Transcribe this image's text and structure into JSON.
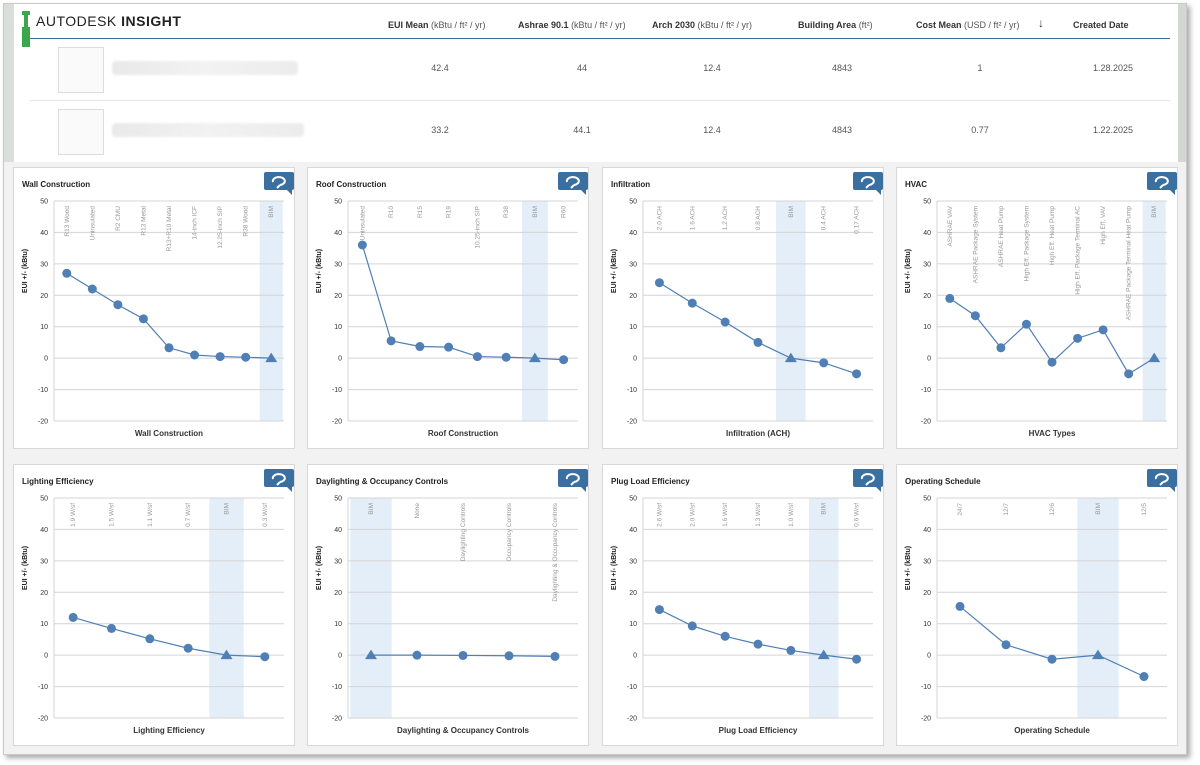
{
  "app": {
    "brand_prefix": "AUTODESK",
    "brand_name": "INSIGHT"
  },
  "table": {
    "columns": [
      {
        "label": "EUI Mean",
        "unit": "(kBtu / ft² / yr)"
      },
      {
        "label": "Ashrae 90.1",
        "unit": "(kBtu / ft² / yr)"
      },
      {
        "label": "Arch 2030",
        "unit": "(kBtu / ft² / yr)"
      },
      {
        "label": "Building Area",
        "unit": "(ft²)"
      },
      {
        "label": "Cost Mean",
        "unit": "(USD / ft² / yr)"
      },
      {
        "label": "↓",
        "unit": ""
      },
      {
        "label": "Created Date",
        "unit": ""
      }
    ],
    "rows": [
      {
        "eui": "42.4",
        "ashrae": "44",
        "arch": "12.4",
        "area": "4843",
        "cost": "1",
        "date": "1.28.2025"
      },
      {
        "eui": "33.2",
        "ashrae": "44.1",
        "arch": "12.4",
        "area": "4843",
        "cost": "0.77",
        "date": "1.22.2025"
      }
    ]
  },
  "ylabel": "EUI +/- (kBtu)",
  "ymin": -20,
  "ymax": 50,
  "ytick_labels": [
    "50",
    "40",
    "30",
    "20",
    "10",
    "0",
    "-10",
    "-20"
  ],
  "chart_data": [
    {
      "type": "line",
      "title": "Wall Construction",
      "xlabel": "Wall Construction",
      "categories": [
        "R13 Wood",
        "Uninsulated",
        "R2 CMU",
        "R13 Metal",
        "R13+R10 Metal",
        "14-inch ICF",
        "12.25-inch SIP",
        "R38 Wood",
        "BIM"
      ],
      "values": [
        27,
        22,
        17,
        12.5,
        3.3,
        1,
        0.5,
        0.3,
        0
      ],
      "bim_index": 8
    },
    {
      "type": "line",
      "title": "Roof Construction",
      "xlabel": "Roof Construction",
      "categories": [
        "Uninsulated",
        "R10",
        "R15",
        "R19",
        "10.25-inch SIP",
        "R38",
        "BIM",
        "R60"
      ],
      "values": [
        36,
        5.5,
        3.7,
        3.5,
        0.5,
        0.3,
        0,
        -0.5
      ],
      "bim_index": 6
    },
    {
      "type": "line",
      "title": "Infiltration",
      "xlabel": "Infiltration (ACH)",
      "categories": [
        "2.0 ACH",
        "1.6 ACH",
        "1.2 ACH",
        "0.8 ACH",
        "BIM",
        "0.4 ACH",
        "0.17 ACH"
      ],
      "values": [
        24,
        17.5,
        11.5,
        5,
        0,
        -1.5,
        -5
      ],
      "bim_index": 4
    },
    {
      "type": "line",
      "title": "HVAC",
      "xlabel": "HVAC Types",
      "categories": [
        "ASHRAE VAV",
        "ASHRAE Package System",
        "ASHRAE Heat Pump",
        "High Eff. Package System",
        "High Eff. Heat Pump",
        "High Eff. Package Terminal AC",
        "High Eff. VAV",
        "ASHRAE Package Terminal Heat Pump",
        "BIM"
      ],
      "values": [
        19,
        13.5,
        3.3,
        10.8,
        -1.3,
        6.3,
        9,
        -5,
        0
      ],
      "bim_index": 8
    },
    {
      "type": "line",
      "title": "Lighting Efficiency",
      "xlabel": "Lighting Efficiency",
      "categories": [
        "1.9 W/sf",
        "1.5 W/sf",
        "1.1 W/sf",
        "0.7 W/sf",
        "BIM",
        "0.3 W/sf"
      ],
      "values": [
        12,
        8.5,
        5.2,
        2.2,
        0,
        -0.5
      ],
      "bim_index": 4
    },
    {
      "type": "line",
      "title": "Daylighting & Occupancy Controls",
      "xlabel": "Daylighting & Occupancy Controls",
      "categories": [
        "BIM",
        "None",
        "Daylighting Controls",
        "Occupancy Controls",
        "Daylighting & Occupancy Controls"
      ],
      "values": [
        0,
        0,
        -0.1,
        -0.2,
        -0.4
      ],
      "bim_index": 0
    },
    {
      "type": "line",
      "title": "Plug Load Efficiency",
      "xlabel": "Plug Load Efficiency",
      "categories": [
        "2.6 W/sf",
        "2.0 W/sf",
        "1.6 W/sf",
        "1.3 W/sf",
        "1.0 W/sf",
        "BIM",
        "0.6 W/sf"
      ],
      "values": [
        14.5,
        9.3,
        6,
        3.5,
        1.5,
        0,
        -1.3
      ],
      "bim_index": 5
    },
    {
      "type": "line",
      "title": "Operating Schedule",
      "xlabel": "Operating Schedule",
      "categories": [
        "24/7",
        "12/7",
        "12/6",
        "BIM",
        "12/5"
      ],
      "values": [
        15.5,
        3.3,
        -1.3,
        0,
        -6.8
      ],
      "bim_index": 3
    }
  ],
  "colors": {
    "series": "#4f7fb5",
    "bim_band": "#e3eef8",
    "button": "#3b6fa0",
    "grid": "#d4d4d4",
    "header_line": "#3a6d8a"
  },
  "icons": {
    "card_button": "reload-icon",
    "sort": "sort-down-icon"
  }
}
